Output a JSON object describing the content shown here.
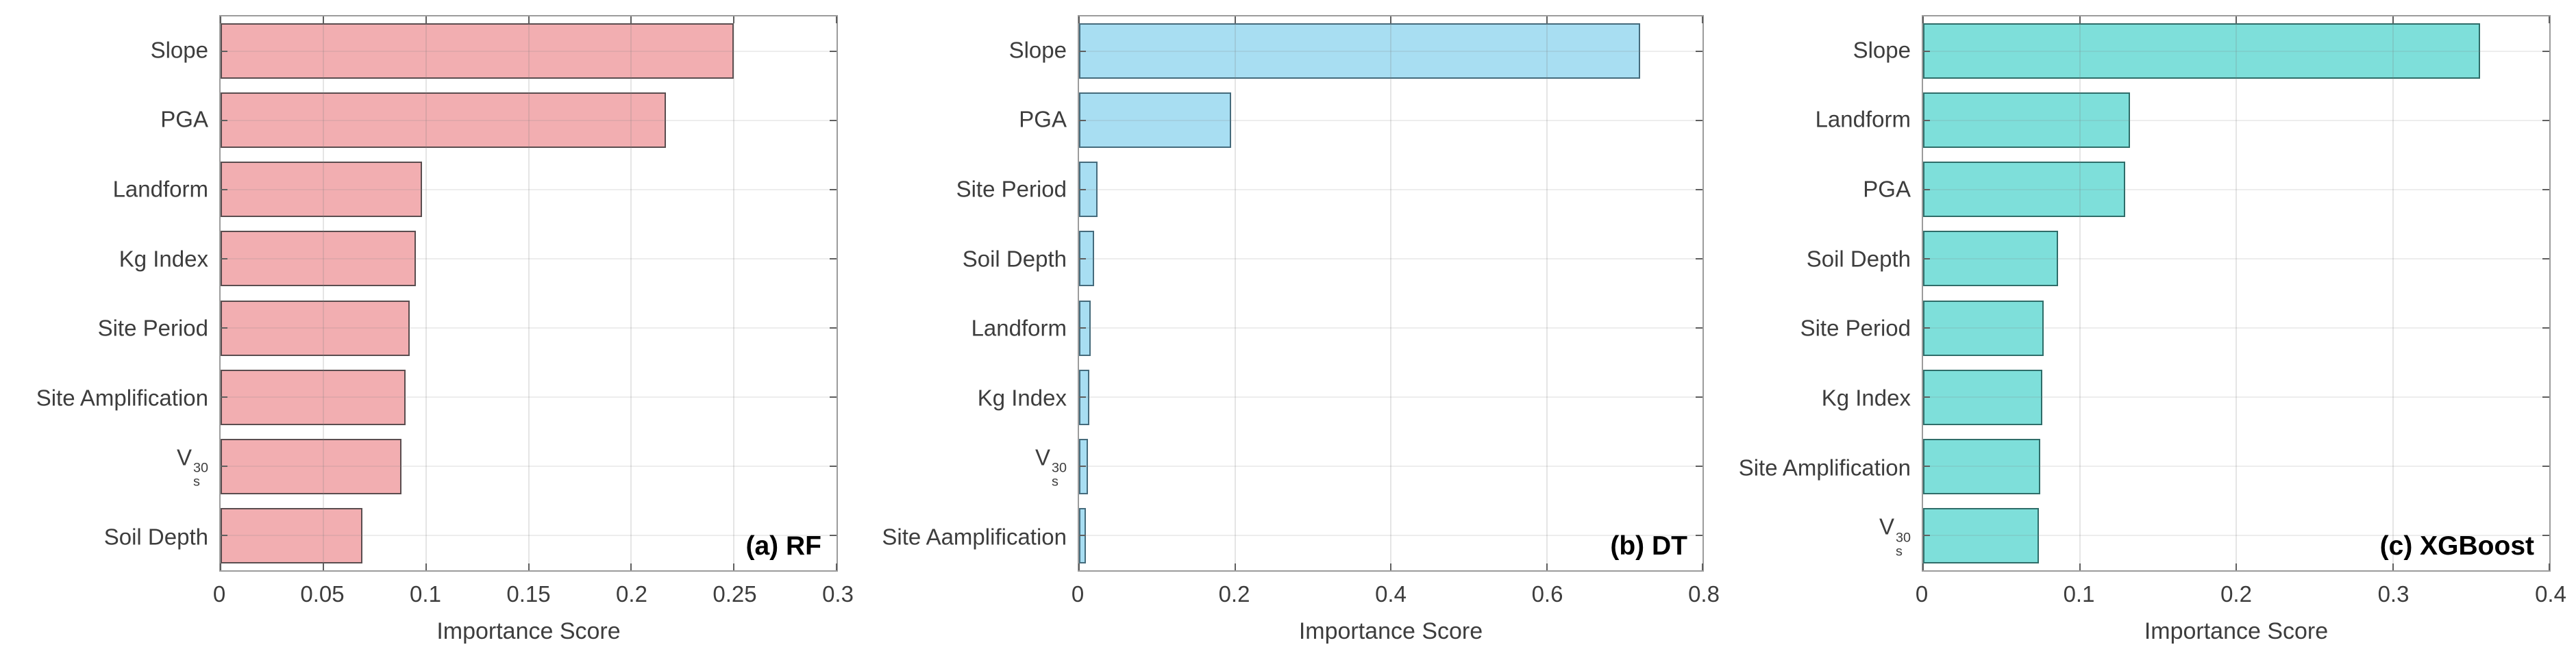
{
  "figure": {
    "background_color": "#ffffff",
    "shared_xlabel": "Importance Score"
  },
  "theme": {
    "box_border_color": "#9c9c9c",
    "tick_color": "#5f5f5f",
    "grid_color": "#e7e7e7",
    "tick_text_color": "#3d3d3d",
    "panel_label_color": "#000000",
    "grid": "on",
    "legend": "none"
  },
  "chart_data": [
    {
      "type": "bar",
      "orientation": "horizontal",
      "panel_label": "(a) RF",
      "xlabel": "Importance Score",
      "ylabel": "",
      "categories": [
        "Slope",
        "PGA",
        "Landform",
        "Kg Index",
        "Site Period",
        "Site Amplification",
        "V_s^30",
        "Soil Depth"
      ],
      "values": [
        0.25,
        0.217,
        0.098,
        0.095,
        0.092,
        0.09,
        0.088,
        0.069
      ],
      "xlim": [
        0,
        0.3
      ],
      "xticks": [
        0,
        0.05,
        0.1,
        0.15,
        0.2,
        0.25,
        0.3
      ],
      "xtick_labels": [
        "0",
        "0.05",
        "0.1",
        "0.15",
        "0.2",
        "0.25",
        "0.3"
      ],
      "bar_color": "#F2AEB1",
      "bar_edge_color": "#5a4d4f"
    },
    {
      "type": "bar",
      "orientation": "horizontal",
      "panel_label": "(b) DT",
      "xlabel": "Importance Score",
      "ylabel": "",
      "categories": [
        "Slope",
        "PGA",
        "Site Period",
        "Soil Depth",
        "Landform",
        "Kg Index",
        "V_s^30",
        "Site Aamplification"
      ],
      "values": [
        0.72,
        0.195,
        0.024,
        0.019,
        0.015,
        0.013,
        0.011,
        0.009
      ],
      "xlim": [
        0,
        0.8
      ],
      "xticks": [
        0,
        0.2,
        0.4,
        0.6,
        0.8
      ],
      "xtick_labels": [
        "0",
        "0.2",
        "0.4",
        "0.6",
        "0.8"
      ],
      "bar_color": "#A8DEF2",
      "bar_edge_color": "#456b7c"
    },
    {
      "type": "bar",
      "orientation": "horizontal",
      "panel_label": "(c) XGBoost",
      "xlabel": "Importance Score",
      "ylabel": "",
      "categories": [
        "Slope",
        "Landform",
        "PGA",
        "Soil Depth",
        "Site Period",
        "Kg Index",
        "Site Amplification",
        "V_s^30"
      ],
      "values": [
        0.356,
        0.132,
        0.129,
        0.086,
        0.077,
        0.076,
        0.075,
        0.074
      ],
      "xlim": [
        0,
        0.4
      ],
      "xticks": [
        0,
        0.1,
        0.2,
        0.3,
        0.4
      ],
      "xtick_labels": [
        "0",
        "0.1",
        "0.2",
        "0.3",
        "0.4"
      ],
      "bar_color": "#7EDFDA",
      "bar_edge_color": "#2f6d69"
    }
  ]
}
